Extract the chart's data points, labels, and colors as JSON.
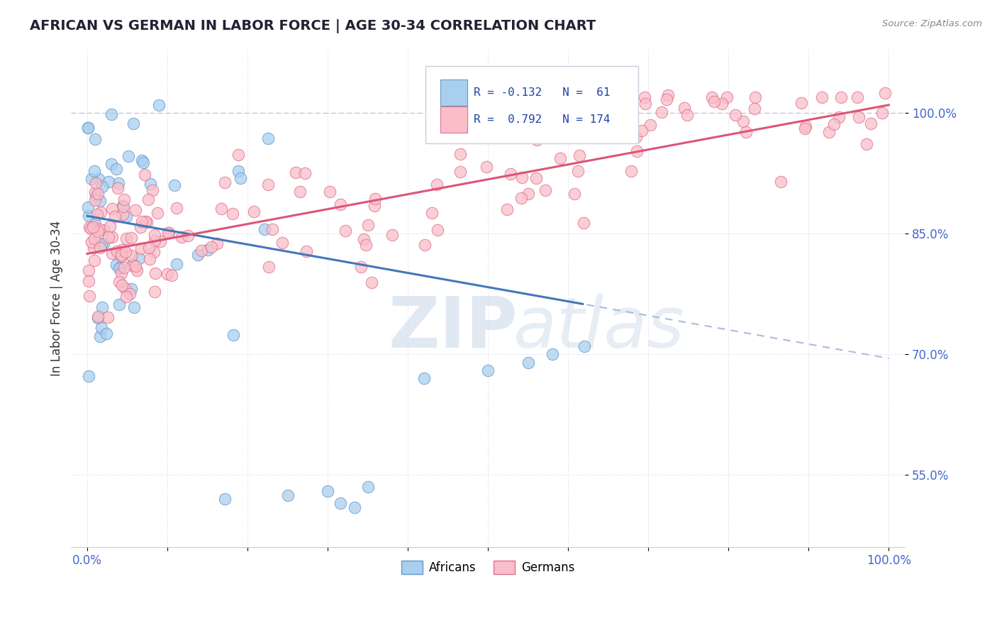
{
  "title": "AFRICAN VS GERMAN IN LABOR FORCE | AGE 30-34 CORRELATION CHART",
  "source": "Source: ZipAtlas.com",
  "ylabel": "In Labor Force | Age 30-34",
  "xlim": [
    -0.02,
    1.02
  ],
  "ylim": [
    0.46,
    1.08
  ],
  "yticks": [
    0.55,
    0.7,
    0.85,
    1.0
  ],
  "ytick_labels": [
    "55.0%",
    "70.0%",
    "85.0%",
    "100.0%"
  ],
  "xticks": [
    0.0,
    0.1,
    0.2,
    0.3,
    0.4,
    0.5,
    0.6,
    0.7,
    0.8,
    0.9,
    1.0
  ],
  "xtick_labels": [
    "0.0%",
    "",
    "",
    "",
    "",
    "",
    "",
    "",
    "",
    "",
    "100.0%"
  ],
  "african_color": "#A8CFEE",
  "african_edge": "#6699CC",
  "german_color": "#F9BEC8",
  "german_edge": "#E07090",
  "african_R": -0.132,
  "african_N": 61,
  "german_R": 0.792,
  "german_N": 174,
  "trend_african_color": "#4477BB",
  "trend_german_color": "#DD5577",
  "trend_dash_color": "#AABBDD",
  "background_color": "#FFFFFF",
  "grid_color": "#DDDDEE",
  "watermark_zip": "ZIP",
  "watermark_atlas": "atlas",
  "title_fontsize": 14,
  "tick_label_color": "#4466CC",
  "african_line_x_end": 0.62,
  "african_trend_x0": 0.0,
  "african_trend_y0": 0.872,
  "african_trend_x1": 1.0,
  "african_trend_y1": 0.695,
  "german_trend_x0": 0.0,
  "german_trend_y0": 0.825,
  "german_trend_x1": 1.0,
  "german_trend_y1": 1.01
}
